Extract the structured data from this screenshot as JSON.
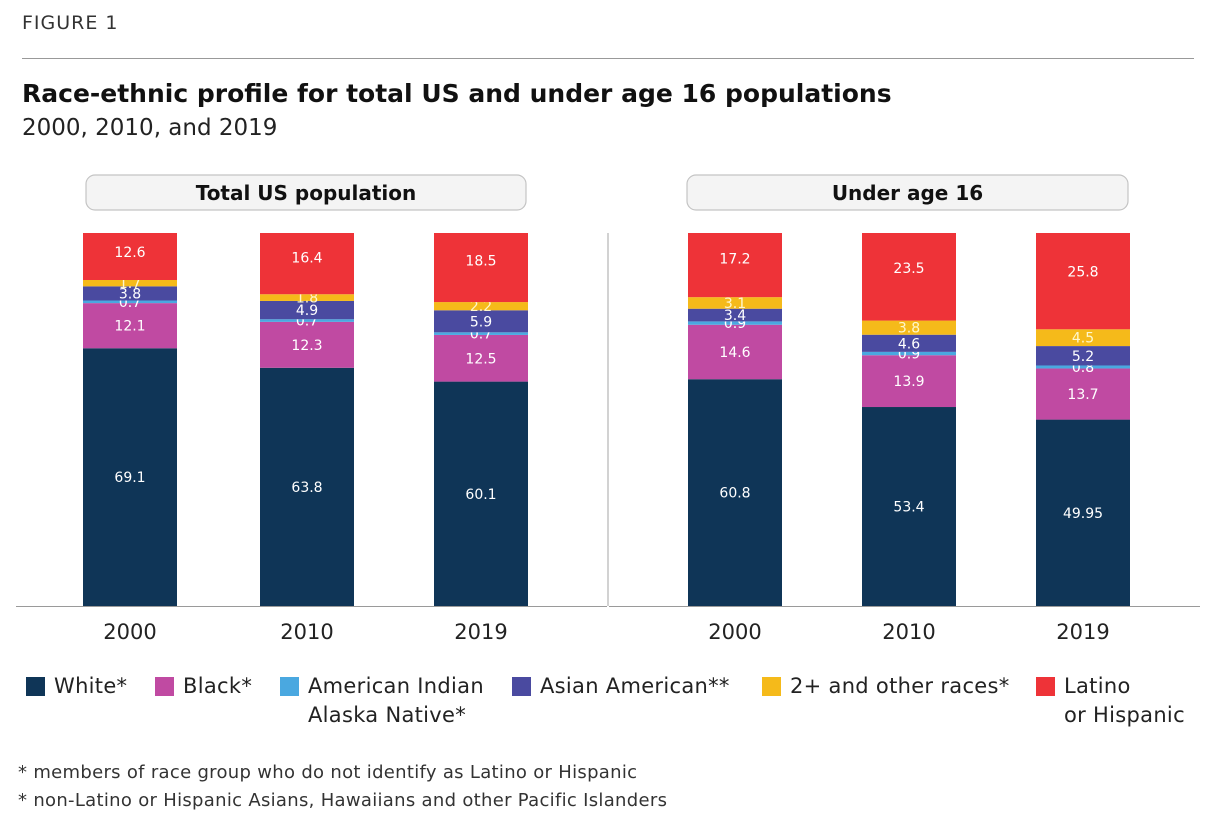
{
  "figure_label": "FIGURE 1",
  "title": "Race-ethnic profile for total US and under age 16 populations",
  "subtitle": "2000, 2010, and 2019",
  "colors": {
    "White": "#0f3557",
    "Black": "#c04aa2",
    "American Indian Alaska Native": "#4aa8e0",
    "Asian American": "#4a4aa0",
    "2+ and other races": "#f5ba1a",
    "Latino or Hispanic": "#ee3338"
  },
  "legend": [
    {
      "key": "White",
      "label": "White*"
    },
    {
      "key": "Black",
      "label": "Black*"
    },
    {
      "key": "American Indian Alaska Native",
      "label": "American Indian\nAlaska Native*"
    },
    {
      "key": "Asian American",
      "label": "Asian American**"
    },
    {
      "key": "2+ and other races",
      "label": "2+ and other races*"
    },
    {
      "key": "Latino or Hispanic",
      "label": "Latino\nor Hispanic"
    }
  ],
  "footnotes": [
    "* members of race group who do not identify as Latino or Hispanic",
    "* non-Latino or Hispanic Asians, Hawaiians and other Pacific Islanders"
  ],
  "chart_data": [
    {
      "type": "bar",
      "stacked": true,
      "title": "Total US population",
      "categories": [
        "2000",
        "2010",
        "2019"
      ],
      "ylim": [
        0,
        100
      ],
      "series": [
        {
          "name": "White",
          "values": [
            69.1,
            63.8,
            60.1
          ],
          "labels": [
            "69.1",
            "63.8",
            "60.1"
          ]
        },
        {
          "name": "Black",
          "values": [
            12.1,
            12.3,
            12.5
          ],
          "labels": [
            "12.1",
            "12.3",
            "12.5"
          ]
        },
        {
          "name": "American Indian Alaska Native",
          "values": [
            0.7,
            0.7,
            0.7
          ],
          "labels": [
            "0.7",
            "0.7",
            "0.7"
          ]
        },
        {
          "name": "Asian American",
          "values": [
            3.8,
            4.9,
            5.9
          ],
          "labels": [
            "3.8",
            "4.9",
            "5.9"
          ]
        },
        {
          "name": "2+ and other races",
          "values": [
            1.7,
            1.8,
            2.2
          ],
          "labels": [
            "1.7",
            "1.8",
            "2.2"
          ]
        },
        {
          "name": "Latino or Hispanic",
          "values": [
            12.6,
            16.4,
            18.5
          ],
          "labels": [
            "12.6",
            "16.4",
            "18.5"
          ]
        }
      ]
    },
    {
      "type": "bar",
      "stacked": true,
      "title": "Under age 16",
      "categories": [
        "2000",
        "2010",
        "2019"
      ],
      "ylim": [
        0,
        100
      ],
      "series": [
        {
          "name": "White",
          "values": [
            60.8,
            53.4,
            49.95
          ],
          "labels": [
            "60.8",
            "53.4",
            "49.95"
          ]
        },
        {
          "name": "Black",
          "values": [
            14.6,
            13.9,
            13.7
          ],
          "labels": [
            "14.6",
            "13.9",
            "13.7"
          ]
        },
        {
          "name": "American Indian Alaska Native",
          "values": [
            0.9,
            0.9,
            0.8
          ],
          "labels": [
            "0.9",
            "0.9",
            "0.8"
          ]
        },
        {
          "name": "Asian American",
          "values": [
            3.4,
            4.6,
            5.2
          ],
          "labels": [
            "3.4",
            "4.6",
            "5.2"
          ]
        },
        {
          "name": "2+ and other races",
          "values": [
            3.1,
            3.8,
            4.5
          ],
          "labels": [
            "3.1",
            "3.8",
            "4.5"
          ]
        },
        {
          "name": "Latino or Hispanic",
          "values": [
            17.2,
            23.5,
            25.8
          ],
          "labels": [
            "17.2",
            "23.5",
            "25.8"
          ]
        }
      ]
    }
  ]
}
